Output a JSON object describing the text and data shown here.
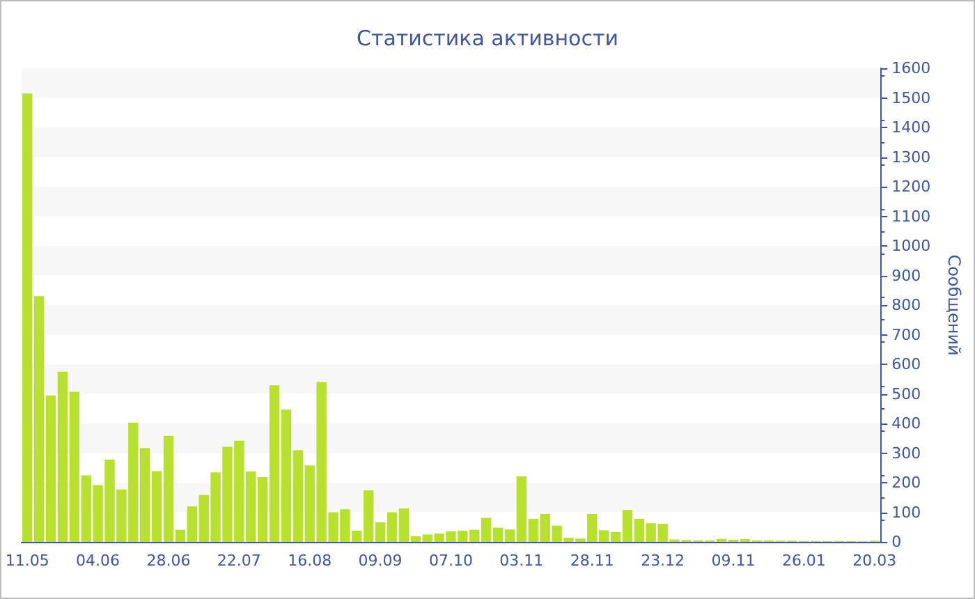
{
  "chart_data": {
    "type": "bar",
    "title": "Статистика активности",
    "ylabel": "Сообщений",
    "categories": [
      "11.05",
      null,
      null,
      null,
      null,
      null,
      "04.06",
      null,
      null,
      null,
      null,
      null,
      "28.06",
      null,
      null,
      null,
      null,
      null,
      "22.07",
      null,
      null,
      null,
      null,
      null,
      "16.08",
      null,
      null,
      null,
      null,
      null,
      "09.09",
      null,
      null,
      null,
      null,
      null,
      "07.10",
      null,
      null,
      null,
      null,
      null,
      "03.11",
      null,
      null,
      null,
      null,
      null,
      "28.11",
      null,
      null,
      null,
      null,
      null,
      "23.12",
      null,
      null,
      null,
      null,
      null,
      "09.11",
      null,
      null,
      null,
      null,
      null,
      "26.01",
      null,
      null,
      null,
      null,
      null,
      "20.03"
    ],
    "values": [
      1515,
      830,
      495,
      575,
      507,
      225,
      192,
      278,
      177,
      403,
      317,
      239,
      358,
      41,
      120,
      158,
      235,
      321,
      342,
      238,
      219,
      529,
      447,
      310,
      258,
      540,
      100,
      110,
      38,
      174,
      66,
      100,
      113,
      19,
      25,
      28,
      36,
      38,
      41,
      81,
      48,
      42,
      222,
      78,
      94,
      55,
      14,
      11,
      94,
      39,
      33,
      108,
      78,
      63,
      61,
      8,
      6,
      5,
      5,
      10,
      7,
      9,
      5,
      5,
      4,
      4,
      3,
      3,
      3,
      3,
      3,
      2,
      4
    ],
    "color": "#b8e02e",
    "ylim": [
      0,
      1600
    ],
    "yticks": [
      0,
      100,
      200,
      300,
      400,
      500,
      600,
      700,
      800,
      900,
      1000,
      1100,
      1200,
      1300,
      1400,
      1500,
      1600
    ]
  }
}
